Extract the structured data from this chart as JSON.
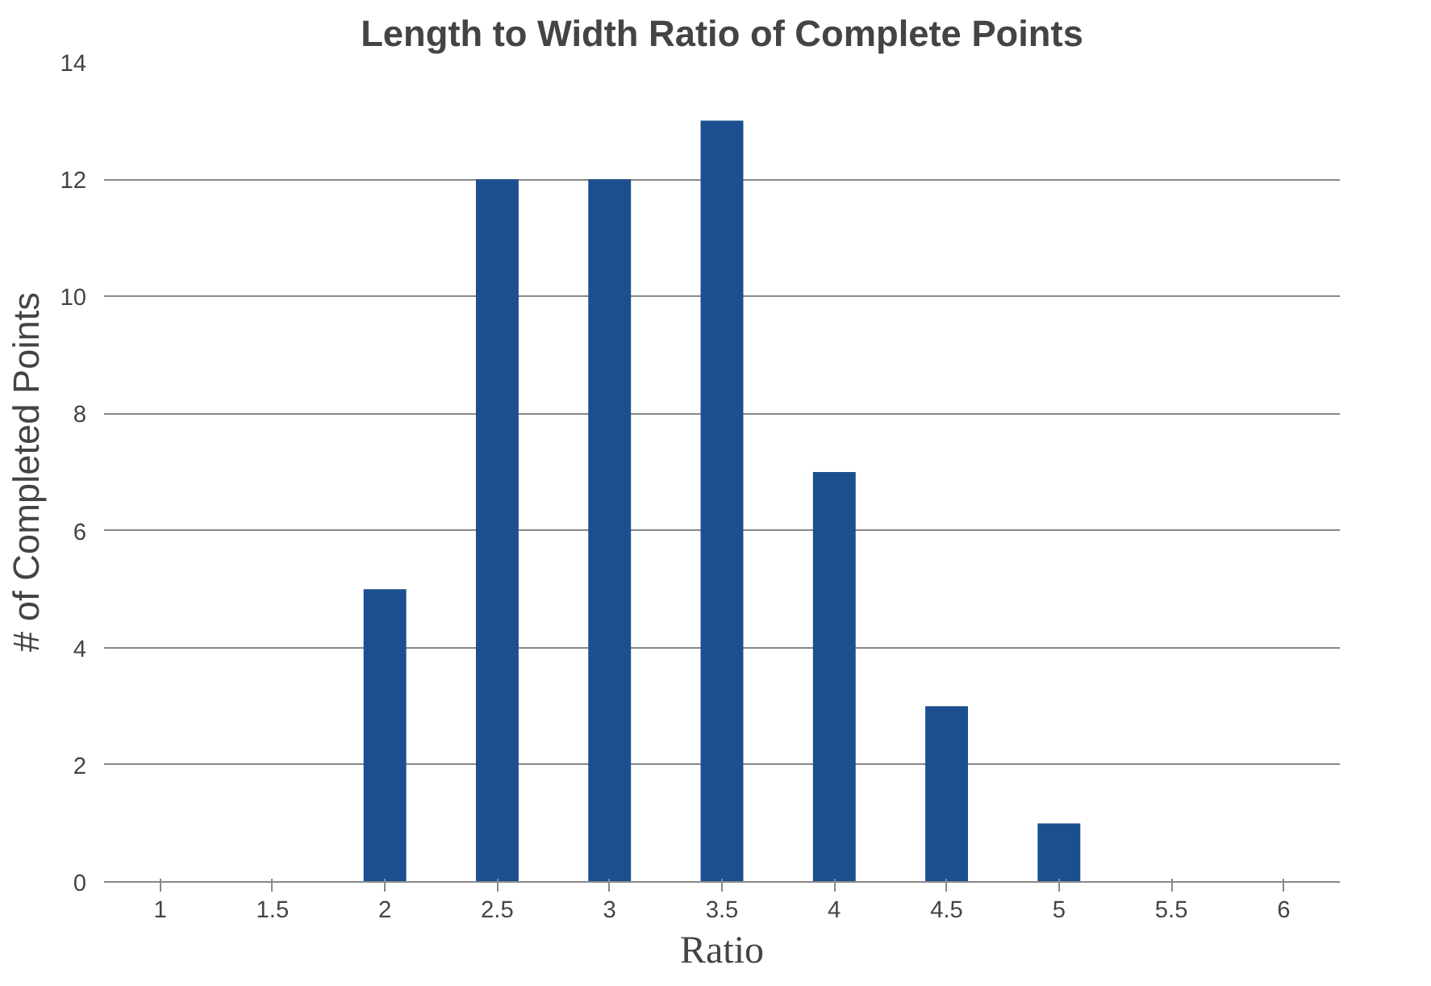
{
  "chart_data": {
    "type": "bar",
    "title": "Length to Width Ratio of Complete Points",
    "xlabel": "Ratio",
    "ylabel": "# of Completed Points",
    "categories": [
      "1",
      "1.5",
      "2",
      "2.5",
      "3",
      "3.5",
      "4",
      "4.5",
      "5",
      "5.5",
      "6"
    ],
    "values": [
      0,
      0,
      5,
      12,
      12,
      13,
      7,
      3,
      1,
      0,
      0
    ],
    "color": "#1b4f8f",
    "ylim": [
      0,
      14
    ],
    "yticks": [
      0,
      2,
      4,
      6,
      8,
      10,
      12,
      14
    ],
    "grid": "y"
  }
}
